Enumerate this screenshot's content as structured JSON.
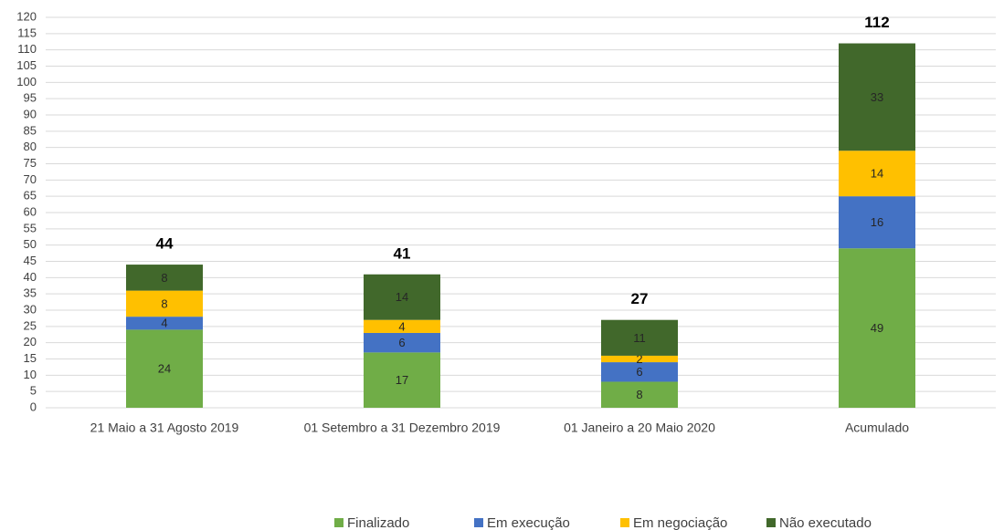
{
  "chart_data": {
    "type": "stacked_bar",
    "categories": [
      "21 Maio a 31 Agosto 2019",
      "01 Setembro a 31 Dezembro 2019",
      "01 Janeiro a 20 Maio 2020",
      "Acumulado"
    ],
    "series": [
      {
        "name": "Finalizado",
        "color": "#70ad47",
        "values": [
          24,
          17,
          8,
          49
        ]
      },
      {
        "name": "Em execução",
        "color": "#4472c4",
        "values": [
          4,
          6,
          6,
          16
        ]
      },
      {
        "name": "Em negociação",
        "color": "#ffc000",
        "values": [
          8,
          4,
          2,
          14
        ]
      },
      {
        "name": "Não executado",
        "color": "#41682b",
        "values": [
          8,
          14,
          11,
          33
        ]
      }
    ],
    "totals": [
      44,
      41,
      27,
      112
    ],
    "ylim": [
      0,
      120
    ],
    "yticks": [
      0,
      5,
      10,
      15,
      20,
      25,
      30,
      35,
      40,
      45,
      50,
      55,
      60,
      65,
      70,
      75,
      80,
      85,
      90,
      95,
      100,
      105,
      110,
      115,
      120
    ],
    "grid": true,
    "legend": "bottom"
  }
}
